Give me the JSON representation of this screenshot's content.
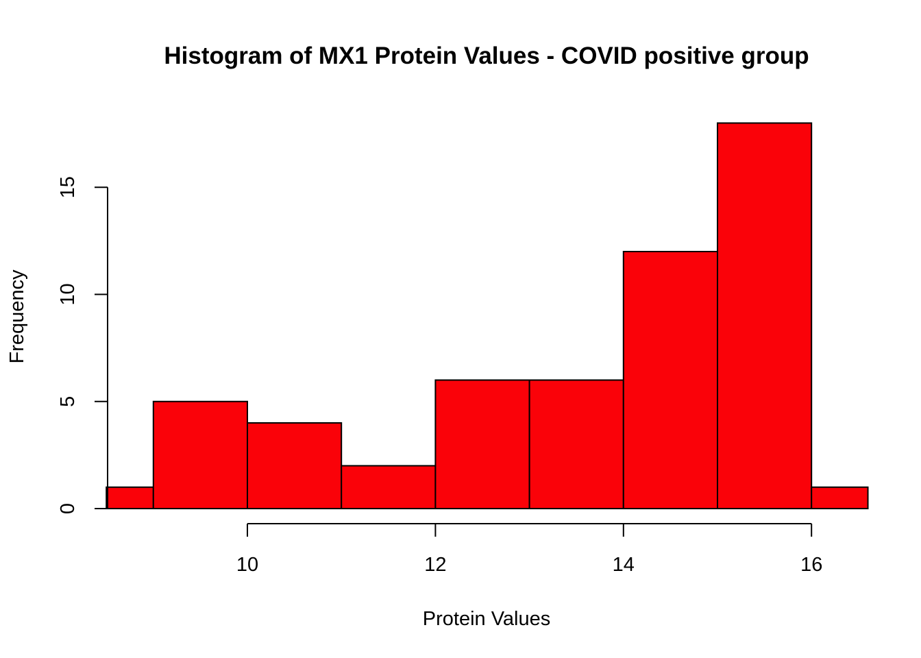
{
  "chart_data": {
    "type": "bar",
    "title": "Histogram of MX1 Protein Values - COVID positive group",
    "xlabel": "Protein Values",
    "ylabel": "Frequency",
    "bar_color": "#FA0209",
    "bins": [
      {
        "from": 8.5,
        "to": 9,
        "count": 1
      },
      {
        "from": 9,
        "to": 10,
        "count": 5
      },
      {
        "from": 10,
        "to": 11,
        "count": 4
      },
      {
        "from": 11,
        "to": 12,
        "count": 2
      },
      {
        "from": 12,
        "to": 13,
        "count": 6
      },
      {
        "from": 13,
        "to": 14,
        "count": 6
      },
      {
        "from": 14,
        "to": 15,
        "count": 12
      },
      {
        "from": 15,
        "to": 16,
        "count": 18
      },
      {
        "from": 16,
        "to": 16.6,
        "count": 1
      }
    ],
    "x_ticks": [
      10,
      12,
      14,
      16
    ],
    "y_ticks": [
      0,
      5,
      10,
      15
    ],
    "xlim": [
      8.5,
      16.6
    ],
    "ylim": [
      0,
      18
    ],
    "grid": false,
    "legend": "none"
  }
}
